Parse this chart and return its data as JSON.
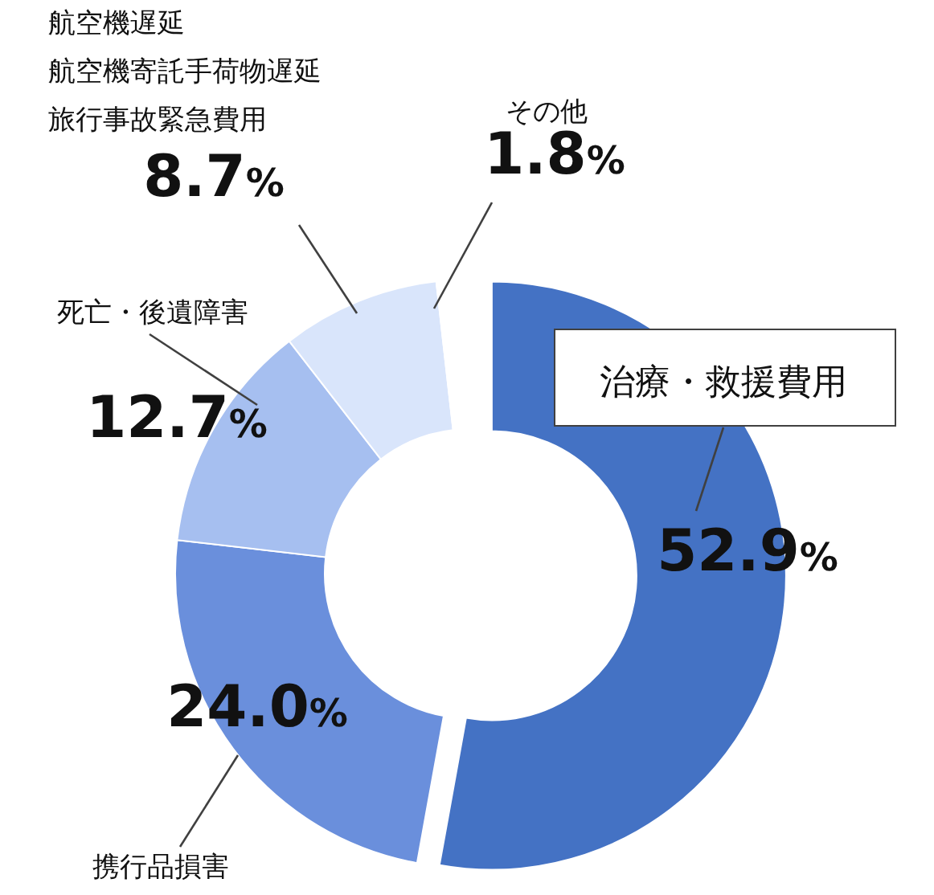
{
  "chart_data": {
    "type": "donut",
    "categories": [
      "治療・救援費用",
      "携行品損害",
      "死亡・後遺障害",
      "旅行事故緊急費用",
      "その他"
    ],
    "values": [
      52.9,
      24.0,
      12.7,
      8.7,
      1.8
    ],
    "value_labels": [
      "52.9%",
      "24.0%",
      "12.7%",
      "8.7%",
      "1.8%"
    ],
    "colors": [
      "#4472c4",
      "#6a8fdc",
      "#a6bff0",
      "#d9e5fb",
      "#ffffff"
    ],
    "annotations": [
      "航空機遅延",
      "航空機寄託手荷物遅延"
    ]
  }
}
